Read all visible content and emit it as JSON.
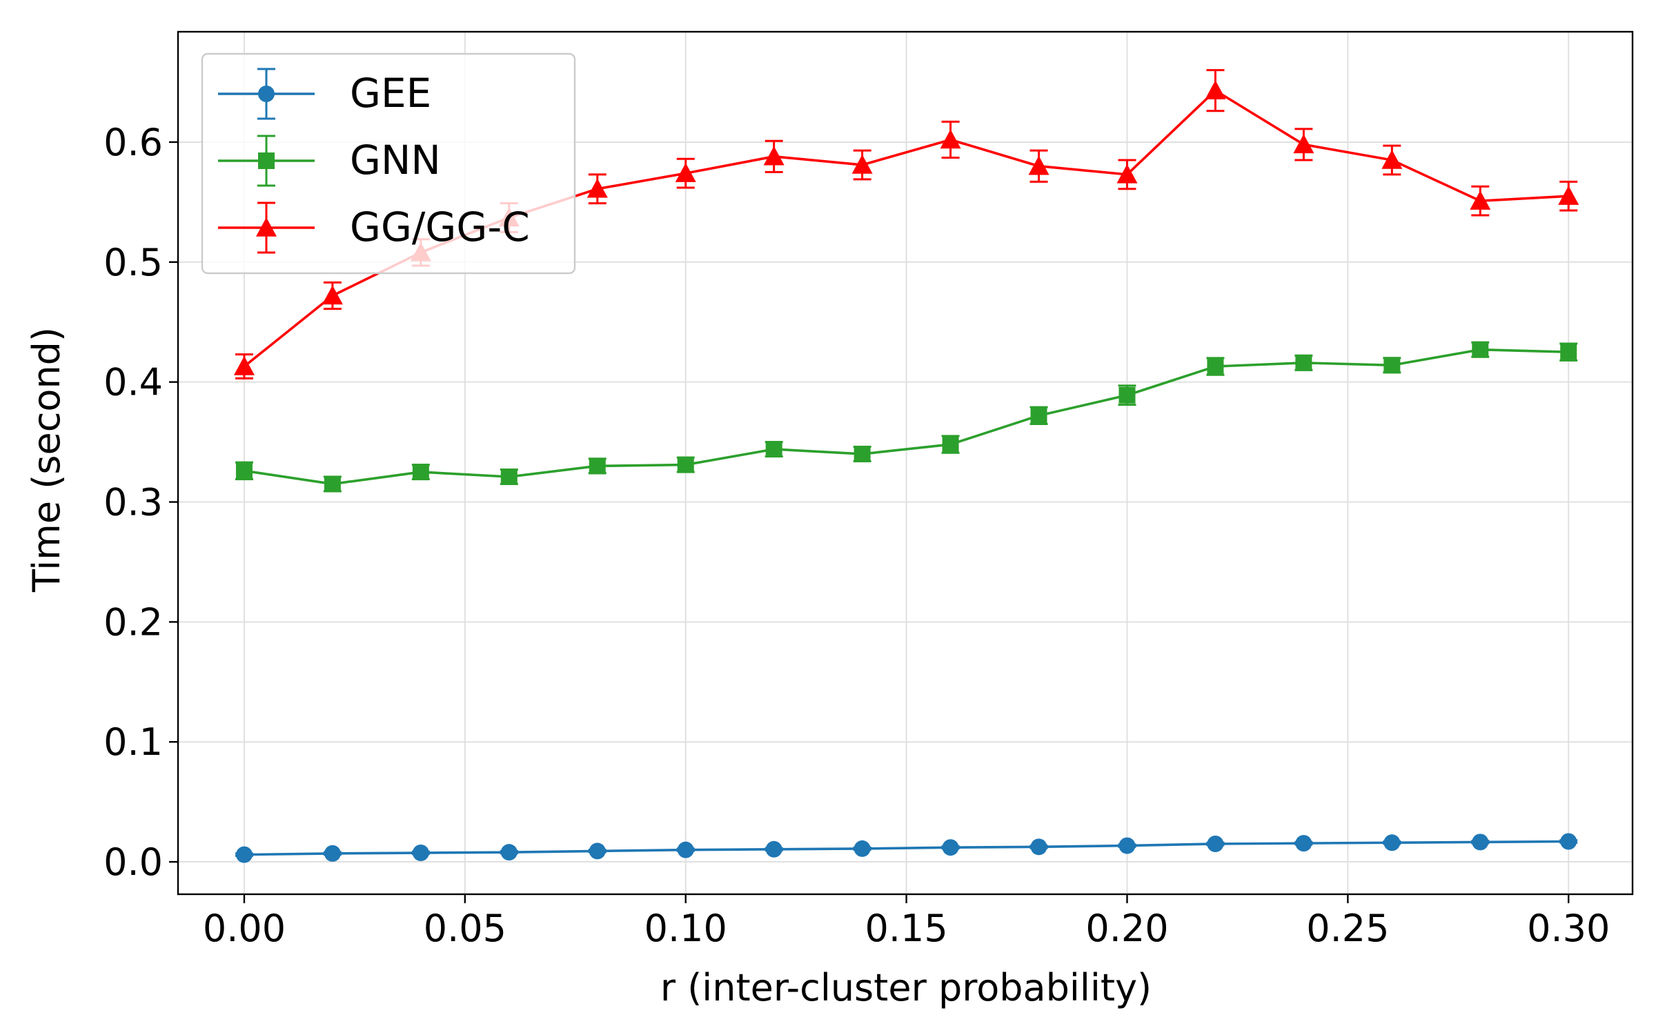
{
  "chart_data": {
    "type": "line",
    "title": "",
    "xlabel": "r (inter-cluster probability)",
    "ylabel": "Time (second)",
    "xlim": [
      -0.015,
      0.3145
    ],
    "ylim": [
      -0.027,
      0.692
    ],
    "xticks": [
      0.0,
      0.05,
      0.1,
      0.15,
      0.2,
      0.25,
      0.3
    ],
    "xtick_labels": [
      "0.00",
      "0.05",
      "0.10",
      "0.15",
      "0.20",
      "0.25",
      "0.30"
    ],
    "yticks": [
      0.0,
      0.1,
      0.2,
      0.3,
      0.4,
      0.5,
      0.6
    ],
    "ytick_labels": [
      "0.0",
      "0.1",
      "0.2",
      "0.3",
      "0.4",
      "0.5",
      "0.6"
    ],
    "grid": true,
    "legend_position": "top-left",
    "x": [
      0.0,
      0.02,
      0.04,
      0.06,
      0.08,
      0.1,
      0.12,
      0.14,
      0.16,
      0.18,
      0.2,
      0.22,
      0.24,
      0.26,
      0.28,
      0.3
    ],
    "series": [
      {
        "name": "GEE",
        "color": "#1f77b4",
        "marker": "circle",
        "values": [
          0.006,
          0.007,
          0.0075,
          0.008,
          0.009,
          0.01,
          0.0105,
          0.011,
          0.012,
          0.0125,
          0.0135,
          0.015,
          0.0155,
          0.016,
          0.0165,
          0.017
        ],
        "errors": [
          0.001,
          0.001,
          0.001,
          0.001,
          0.001,
          0.001,
          0.001,
          0.001,
          0.001,
          0.001,
          0.001,
          0.001,
          0.001,
          0.001,
          0.001,
          0.001
        ]
      },
      {
        "name": "GNN",
        "color": "#2ca02c",
        "marker": "square",
        "values": [
          0.326,
          0.315,
          0.325,
          0.321,
          0.33,
          0.331,
          0.344,
          0.34,
          0.348,
          0.372,
          0.389,
          0.413,
          0.416,
          0.414,
          0.427,
          0.425
        ],
        "errors": [
          0.007,
          0.006,
          0.006,
          0.006,
          0.006,
          0.006,
          0.006,
          0.006,
          0.007,
          0.007,
          0.008,
          0.007,
          0.006,
          0.006,
          0.006,
          0.007
        ]
      },
      {
        "name": "GG/GG-C",
        "color": "#ff0000",
        "marker": "triangle",
        "values": [
          0.413,
          0.472,
          0.508,
          0.537,
          0.561,
          0.574,
          0.588,
          0.581,
          0.602,
          0.58,
          0.573,
          0.643,
          0.598,
          0.585,
          0.551,
          0.555
        ],
        "errors": [
          0.01,
          0.011,
          0.011,
          0.012,
          0.012,
          0.012,
          0.013,
          0.012,
          0.015,
          0.013,
          0.012,
          0.017,
          0.013,
          0.012,
          0.012,
          0.012
        ]
      }
    ]
  }
}
